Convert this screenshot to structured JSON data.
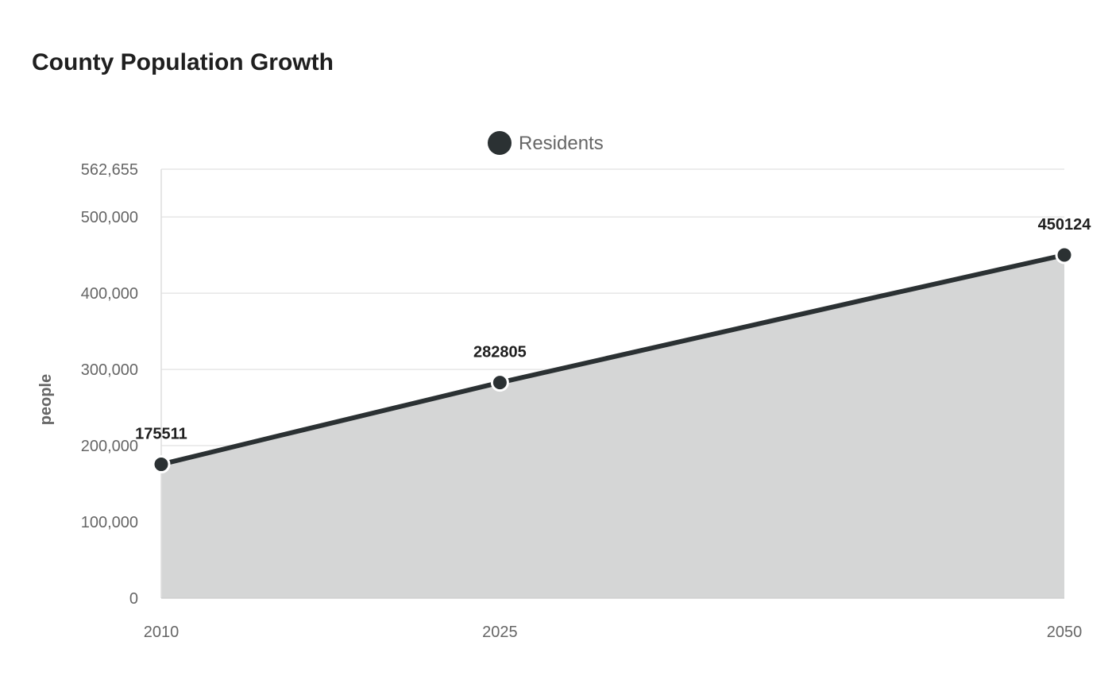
{
  "chart_data": {
    "type": "area",
    "title": "County Population Growth",
    "xlabel": "",
    "ylabel": "people",
    "categories": [
      "2010",
      "2025",
      "2050"
    ],
    "x": [
      2010,
      2025,
      2050
    ],
    "series": [
      {
        "name": "Residents",
        "values": [
          175511,
          282805,
          450124
        ],
        "data_labels": [
          "175511",
          "282805",
          "450124"
        ],
        "color": "#2b3133",
        "fill_color": "#d5d6d6"
      }
    ],
    "ylim": [
      0,
      562655
    ],
    "y_ticks": [
      0,
      100000,
      200000,
      300000,
      400000,
      500000,
      562655
    ],
    "y_tick_labels": [
      "0",
      "100,000",
      "200,000",
      "300,000",
      "400,000",
      "500,000",
      "562,655"
    ],
    "x_tick_labels": [
      "2010",
      "2025",
      "2050"
    ],
    "grid": true,
    "legend_position": "top-center",
    "curve": "smooth"
  }
}
